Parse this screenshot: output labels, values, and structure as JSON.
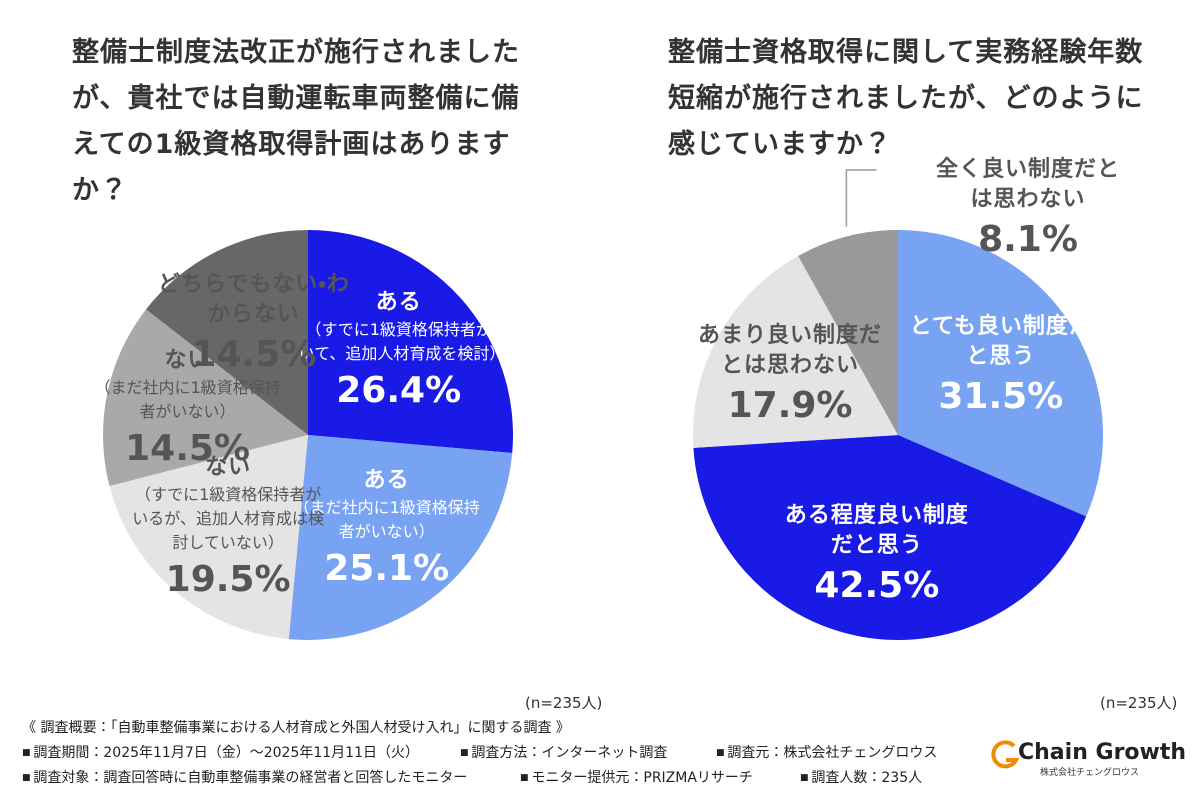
{
  "chart_data": [
    {
      "type": "pie",
      "title": "整備士制度法改正が施行されましたが、貴社では自動運転車両整備に備えての1級資格取得計画はありますか？",
      "categories": [
        "ある",
        "ある",
        "ない",
        "ない",
        "どちらでもない・わからない"
      ],
      "category_details": [
        "（すでに1級資格保持者がいて、追加人材育成を検討）",
        "（まだ社内に1級資格保持者がいない）",
        "（すでに1級資格保持者がいるが、追加人材育成は検討していない）",
        "（まだ社内に1級資格保持者がいない）",
        null
      ],
      "values": [
        26.4,
        25.1,
        19.5,
        14.5,
        14.5
      ],
      "value_labels": [
        "26.4%",
        "25.1%",
        "19.5%",
        "14.5%",
        "14.5%"
      ],
      "colors": [
        "#1a1ae6",
        "#78a3f2",
        "#e4e4e4",
        "#a9a9a9",
        "#676767"
      ],
      "text_colors": [
        "#ffffff",
        "#ffffff",
        "#555555",
        "#555555",
        "#555555"
      ],
      "note": "(n=235人)"
    },
    {
      "type": "pie",
      "title": "整備士資格取得に関して実務経験年数短縮が施行されましたが、どのように感じていますか？",
      "categories": [
        "とても良い制度だと思う",
        "ある程度良い制度だと思う",
        "あまり良い制度だとは思わない",
        "全く良い制度だとは思わない"
      ],
      "values": [
        31.5,
        42.5,
        17.9,
        8.1
      ],
      "value_labels": [
        "31.5%",
        "42.5%",
        "17.9%",
        "8.1%"
      ],
      "colors": [
        "#78a3f2",
        "#1a1ae6",
        "#e4e4e4",
        "#999999"
      ],
      "text_colors": [
        "#ffffff",
        "#ffffff",
        "#555555",
        "#555555"
      ],
      "note": "(n=235人)"
    }
  ],
  "footer": {
    "summary": "《 調査概要：「自動車整備事業における人材育成と外国人材受け入れ」に関する調査 》",
    "items": [
      "調査期間：2025年11月7日（金）～2025年11月11日（火）",
      "調査方法：インターネット調査",
      "調査元：株式会社チェングロウス",
      "調査対象：調査回答時に自動車整備事業の経営者と回答したモニター",
      "モニター提供元：PRIZMAリサーチ",
      "調査人数：235人"
    ],
    "logo": "Chain Growth",
    "logo_sub": "株式会社チェングロウス"
  }
}
